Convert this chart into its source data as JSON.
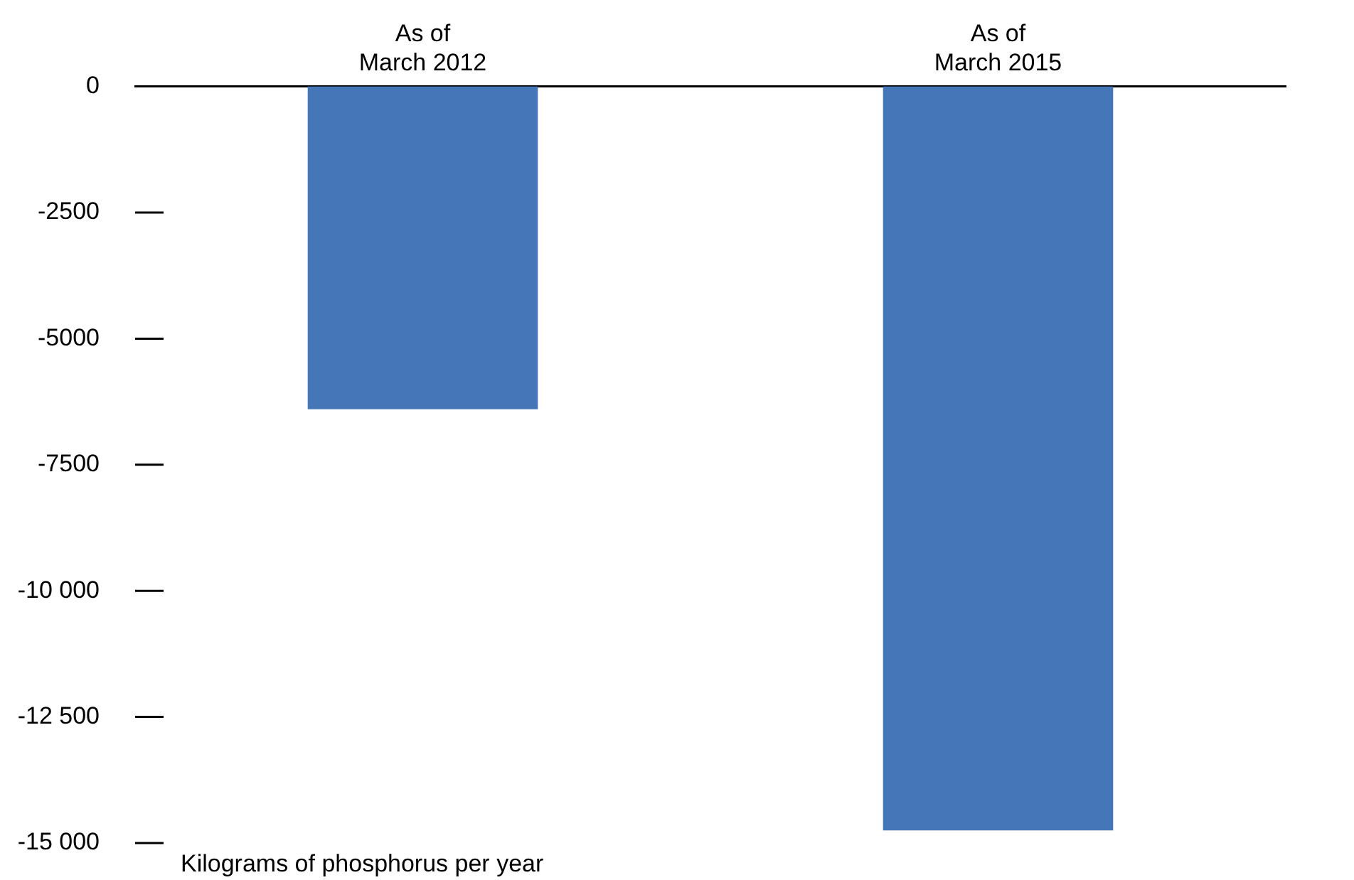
{
  "chart_data": {
    "type": "bar",
    "annotations": [
      "Kilograms of phosphorus per year"
    ],
    "categories": [
      "As of March 2012",
      "As of March 2015"
    ],
    "values": [
      -6400,
      -14750
    ],
    "color": "#4577b8",
    "ylim": [
      -15000,
      0
    ],
    "yticks": [
      {
        "value": -15000,
        "label": "-15 000"
      },
      {
        "value": -12500,
        "label": "-12 500"
      },
      {
        "value": -10000,
        "label": "-10 000"
      },
      -7500,
      -5000,
      -2500,
      0
    ],
    "grid": false,
    "legend": false
  }
}
